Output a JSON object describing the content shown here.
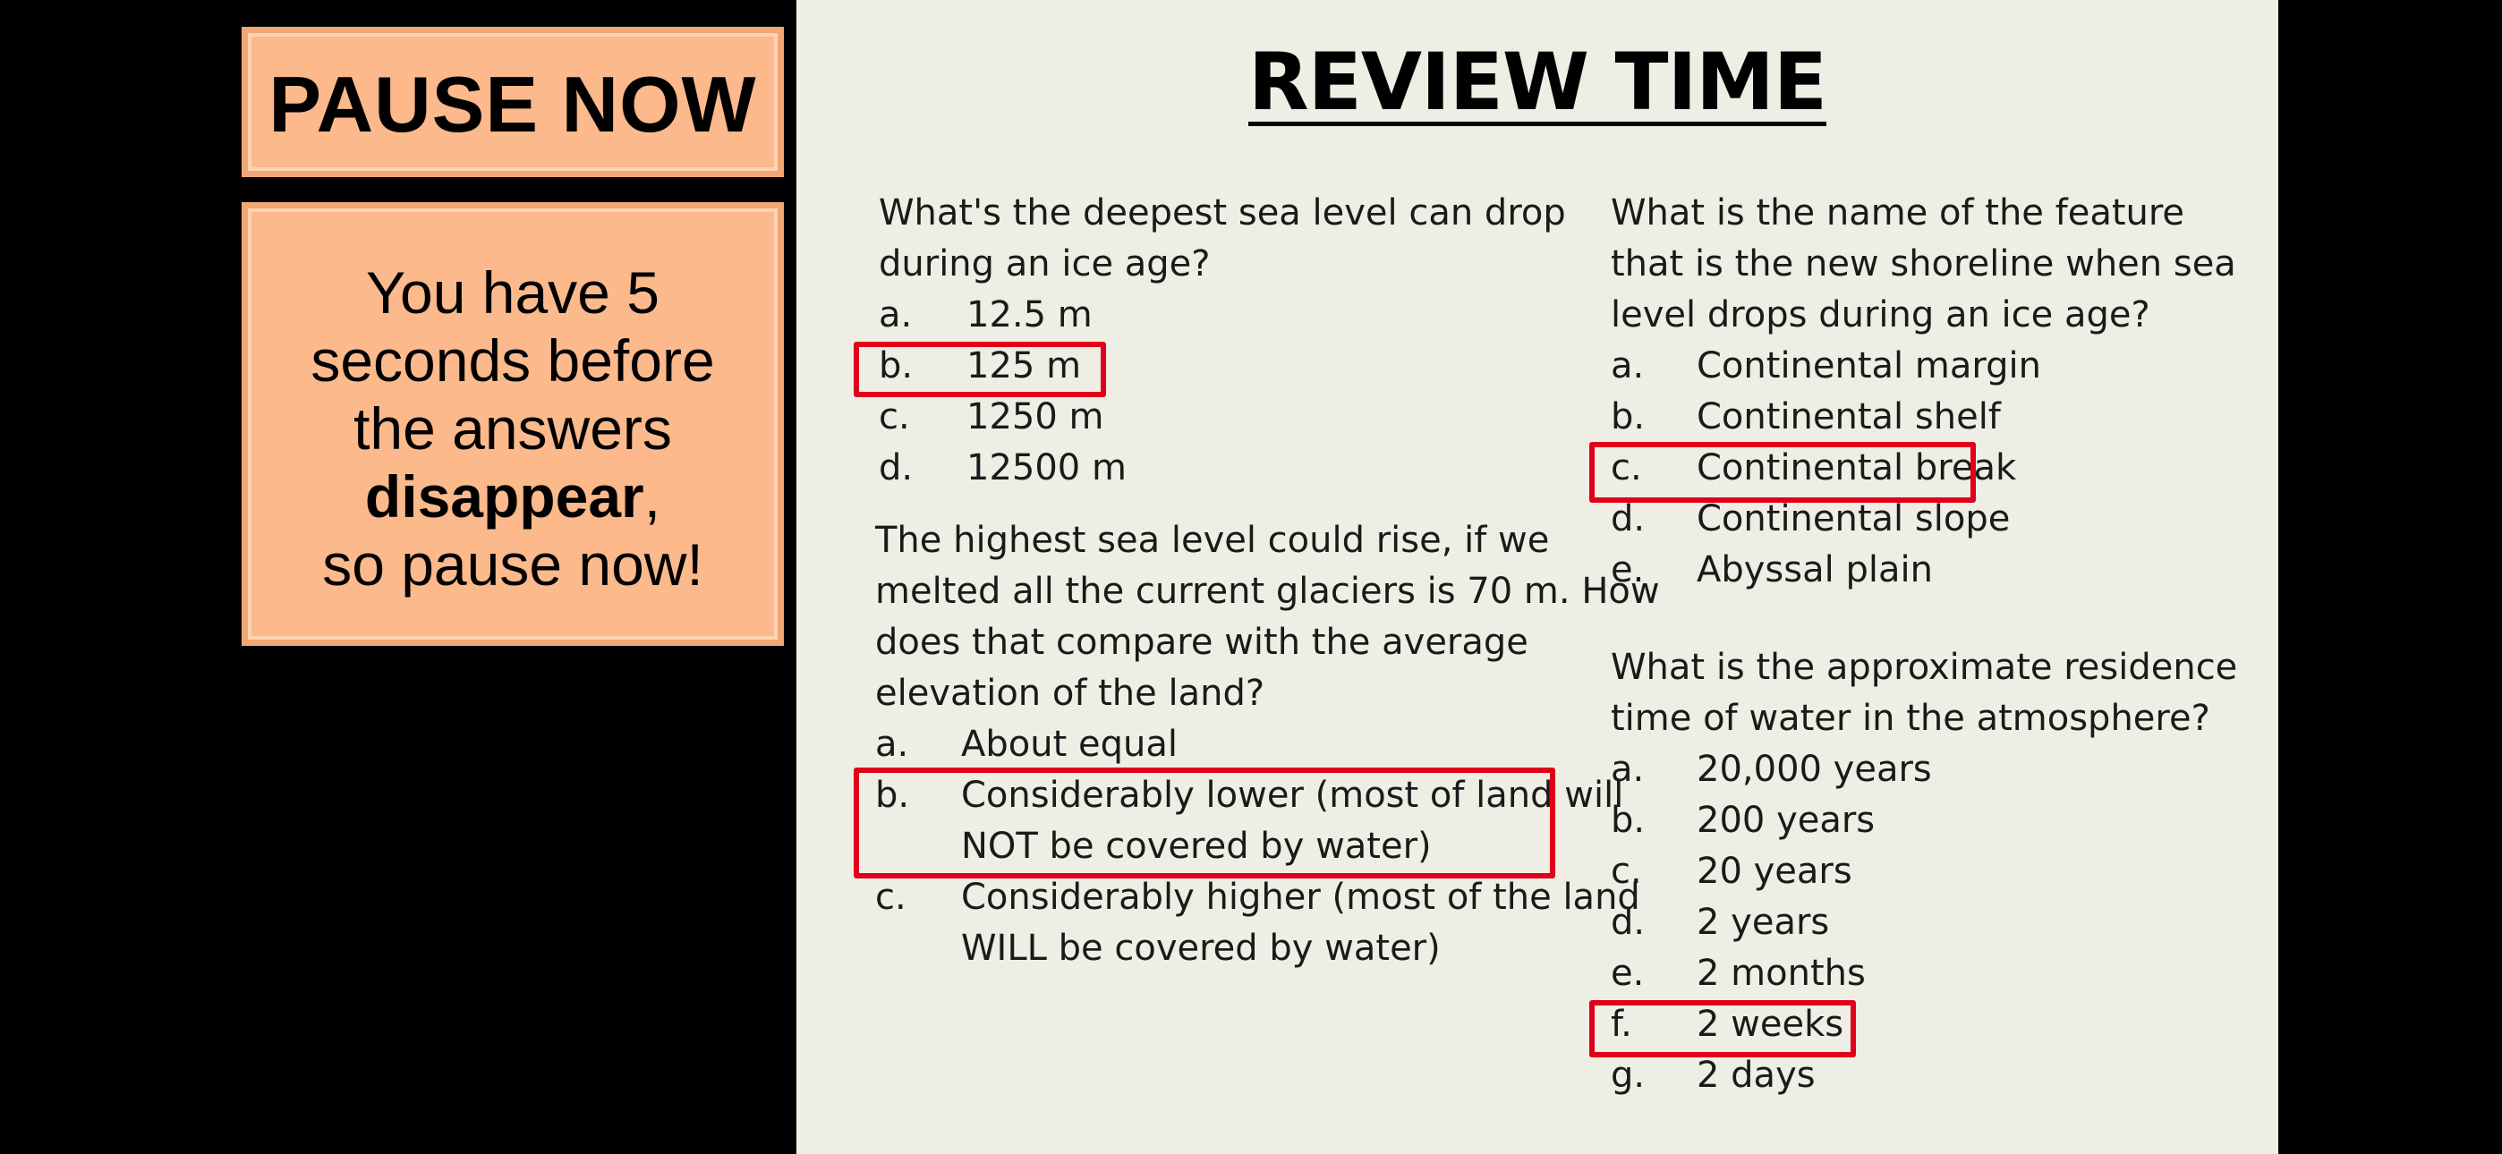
{
  "pause_box": {
    "title": "PAUSE NOW"
  },
  "message_box": {
    "line1": "You have 5",
    "line2": "seconds before",
    "line3": "the answers",
    "bold_word": "disappear",
    "after_bold": ",",
    "line5": "so pause now!"
  },
  "slide": {
    "title": "REVIEW TIME",
    "questions": [
      {
        "stem": "What's the deepest sea level can drop during an ice age?",
        "options": [
          {
            "letter": "a.",
            "text": "12.5 m"
          },
          {
            "letter": "b.",
            "text": "125 m"
          },
          {
            "letter": "c.",
            "text": "1250 m"
          },
          {
            "letter": "d.",
            "text": "12500 m"
          }
        ],
        "highlighted": "b."
      },
      {
        "stem": "The highest sea level could rise, if we melted all the current glaciers is 70 m. How does that compare with the average elevation of the land?",
        "options": [
          {
            "letter": "a.",
            "text": "About equal"
          },
          {
            "letter": "b.",
            "text": "Considerably lower (most of land will NOT be covered by water)"
          },
          {
            "letter": "c.",
            "text": "Considerably higher (most of the land WILL be covered by water)"
          }
        ],
        "highlighted": "b."
      },
      {
        "stem": "What is the name of the feature that is the new shoreline when sea level drops during an ice age?",
        "options": [
          {
            "letter": "a.",
            "text": "Continental margin"
          },
          {
            "letter": "b.",
            "text": "Continental shelf"
          },
          {
            "letter": "c.",
            "text": "Continental break"
          },
          {
            "letter": "d.",
            "text": "Continental slope"
          },
          {
            "letter": "e.",
            "text": "Abyssal plain"
          }
        ],
        "highlighted": "c."
      },
      {
        "stem": "What is the approximate residence time of water in the atmosphere?",
        "options": [
          {
            "letter": "a.",
            "text": "20,000 years"
          },
          {
            "letter": "b.",
            "text": "200 years"
          },
          {
            "letter": "c.",
            "text": "20 years"
          },
          {
            "letter": "d.",
            "text": "2 years"
          },
          {
            "letter": "e.",
            "text": "2 months"
          },
          {
            "letter": "f.",
            "text": "2 weeks"
          },
          {
            "letter": "g.",
            "text": "2 days"
          }
        ],
        "highlighted": "f."
      }
    ]
  },
  "colors": {
    "background": "#000000",
    "box_fill": "#fbb98c",
    "slide_bg": "#eeeee4",
    "highlight": "#e0001b"
  }
}
